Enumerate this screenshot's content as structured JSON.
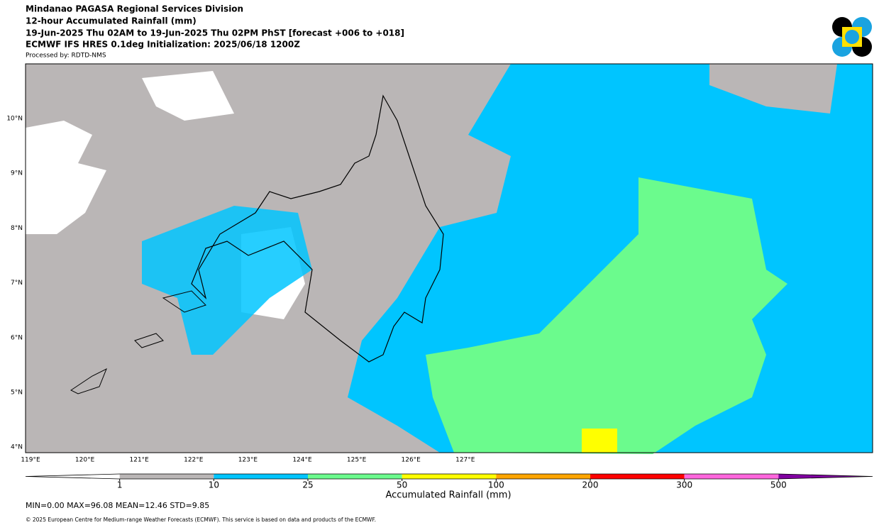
{
  "header": {
    "lines": [
      "Mindanao PAGASA Regional Services Division",
      "12-hour Accumulated Rainfall (mm)",
      "19-Jun-2025 Thu 02AM to 19-Jun-2025 Thu 02PM PhST [forecast +006 to +018]",
      "ECMWF IFS HRES 0.1deg Initialization: 2025/06/18 1200Z"
    ],
    "processed": "Processed by: RDTD-NMS"
  },
  "map": {
    "lon_labels": [
      "119°E",
      "120°E",
      "121°E",
      "122°E",
      "123°E",
      "124°E",
      "125°E",
      "126°E",
      "127°E"
    ],
    "lat_labels": [
      "10°N",
      "9°N",
      "8°N",
      "7°N",
      "6°N",
      "5°N",
      "4°N"
    ]
  },
  "colorbar": {
    "labels": [
      "1",
      "10",
      "25",
      "50",
      "100",
      "200",
      "300",
      "500"
    ],
    "colors": [
      "#ffffff",
      "#bab6b6",
      "#00c5ff",
      "#6bfb8d",
      "#ffff00",
      "#ffa500",
      "#ff0000",
      "#ff66dd",
      "#8000a0"
    ],
    "title": "Accumulated Rainfall (mm)"
  },
  "stats": "MIN=0.00   MAX=96.08   MEAN=12.46   STD=9.85",
  "footer": "© 2025 European Centre for Medium-range Weather Forecasts (ECMWF). This service is based on data and products of the ECMWF."
}
